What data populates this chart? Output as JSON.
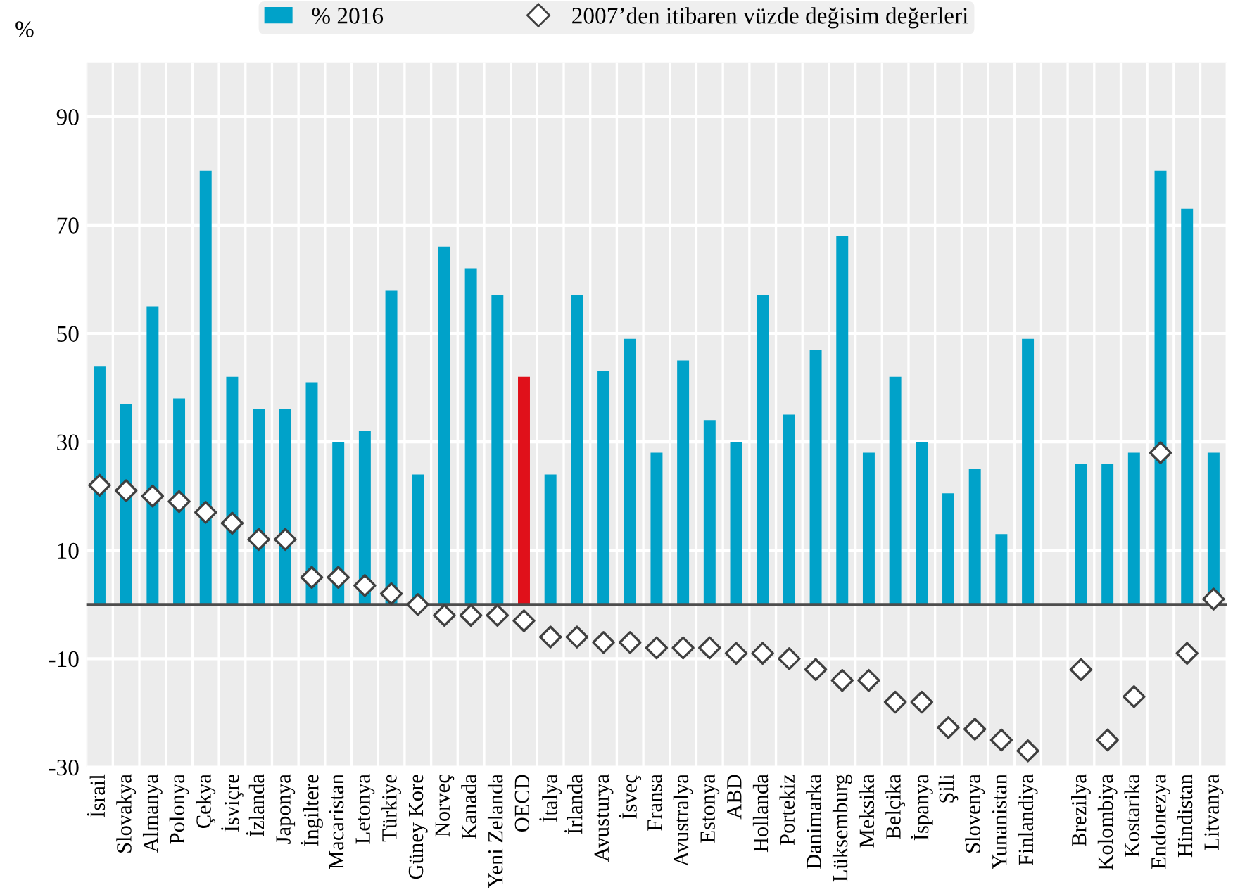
{
  "chart_data": {
    "type": "bar",
    "ylabel": "%",
    "categories": [
      "İsrail",
      "Slovakya",
      "Almanya",
      "Polonya",
      "Çekya",
      "İsviçre",
      "İzlanda",
      "Japonya",
      "İngiltere",
      "Macaristan",
      "Letonya",
      "Türkiye",
      "Güney Kore",
      "Norveç",
      "Kanada",
      "Yeni Zelanda",
      "OECD",
      "İtalya",
      "İrlanda",
      "Avusturya",
      "İsveç",
      "Fransa",
      "Avustralya",
      "Estonya",
      "ABD",
      "Hollanda",
      "Portekiz",
      "Danimarka",
      "Lüksemburg",
      "Meksika",
      "Belçika",
      "İspanya",
      "Şili",
      "Slovenya",
      "Yunanistan",
      "Finlandiya",
      null,
      "Brezilya",
      "Kolombiya",
      "Kostarika",
      "Endonezya",
      "Hindistan",
      "Litvanya"
    ],
    "series": [
      {
        "name": "% 2016",
        "color": "#00a2c9",
        "colors": [
          "#00a2c9",
          "#00a2c9",
          "#00a2c9",
          "#00a2c9",
          "#00a2c9",
          "#00a2c9",
          "#00a2c9",
          "#00a2c9",
          "#00a2c9",
          "#00a2c9",
          "#00a2c9",
          "#00a2c9",
          "#00a2c9",
          "#00a2c9",
          "#00a2c9",
          "#00a2c9",
          "#e0101a",
          "#00a2c9",
          "#00a2c9",
          "#00a2c9",
          "#00a2c9",
          "#00a2c9",
          "#00a2c9",
          "#00a2c9",
          "#00a2c9",
          "#00a2c9",
          "#00a2c9",
          "#00a2c9",
          "#00a2c9",
          "#00a2c9",
          "#00a2c9",
          "#00a2c9",
          "#00a2c9",
          "#00a2c9",
          "#00a2c9",
          "#00a2c9",
          "#00a2c9",
          "#00a2c9",
          "#00a2c9",
          "#00a2c9",
          "#00a2c9",
          "#00a2c9",
          "#00a2c9"
        ],
        "values": [
          44,
          37,
          55,
          38,
          80,
          42,
          36,
          36,
          41,
          30,
          32,
          58,
          24,
          66,
          62,
          57,
          42,
          24,
          57,
          43,
          49,
          28,
          45,
          34,
          30,
          57,
          35,
          47,
          68,
          28,
          42,
          30,
          20.5,
          25,
          13,
          49,
          null,
          26,
          26,
          28,
          80,
          73,
          28
        ]
      },
      {
        "name": "2007’den itibaren vüzde değisim değerleri",
        "type": "scatter",
        "marker": "diamond",
        "color": "#404040",
        "values": [
          22,
          21,
          20,
          19,
          17,
          15,
          12,
          12,
          5,
          5,
          3.5,
          2,
          0,
          -2,
          -2,
          -2,
          -3,
          -6,
          -6,
          -7,
          -7,
          -8,
          -8,
          -8,
          -9,
          -9,
          -10,
          -12,
          -14,
          -14,
          -18,
          -18,
          -22.7,
          -23,
          -25,
          -27,
          null,
          -12,
          -25,
          -17,
          28,
          -9,
          1
        ]
      }
    ],
    "ylim": [
      -30,
      100
    ],
    "yticks": [
      90,
      70,
      50,
      30,
      10,
      -10,
      -30
    ],
    "grid": true,
    "legend": "top",
    "ref_lines": [
      {
        "axis": "y",
        "value": 0,
        "color": "#4d4d4d"
      }
    ]
  }
}
